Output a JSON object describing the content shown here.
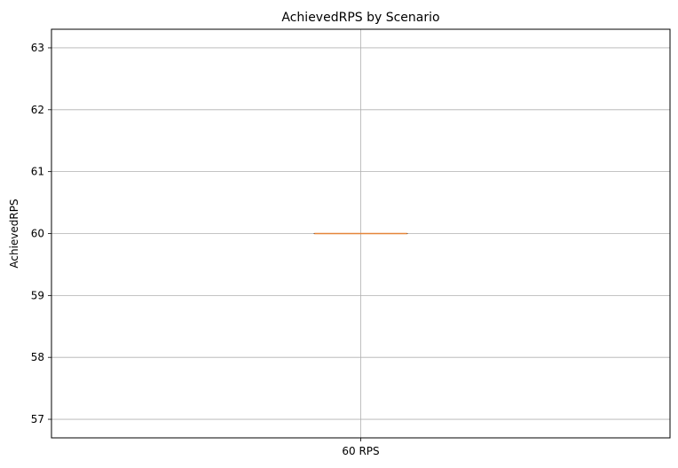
{
  "chart_data": {
    "type": "box",
    "title": "AchievedRPS by Scenario",
    "xlabel": "",
    "ylabel": "AchievedRPS",
    "categories": [
      "60 RPS"
    ],
    "boxes": [
      {
        "category": "60 RPS",
        "min": 60,
        "q1": 60,
        "median": 60,
        "q3": 60,
        "max": 60
      }
    ],
    "ylim": [
      56.7,
      63.3
    ],
    "yticks": [
      57,
      58,
      59,
      60,
      61,
      62,
      63
    ],
    "grid": true,
    "colors": {
      "box": "#000000",
      "median": "#e5863b",
      "whisker": "#000000",
      "grid": "#b0b0b0",
      "axes": "#000000"
    }
  }
}
